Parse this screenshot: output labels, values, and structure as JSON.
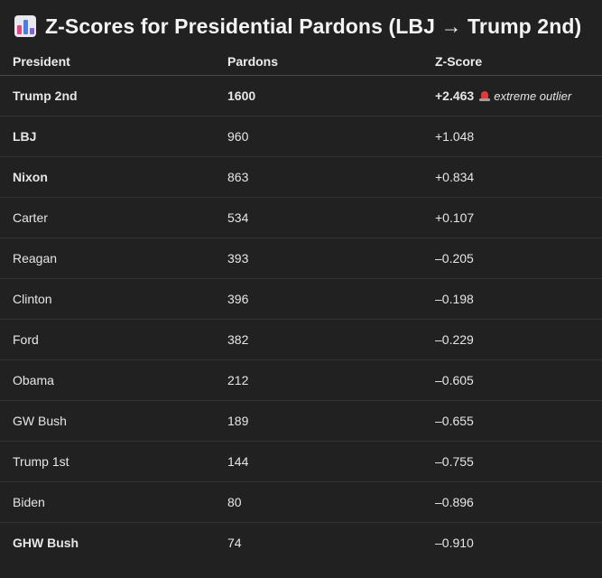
{
  "header": {
    "icon": "bar-chart-icon",
    "title": "Z-Scores for Presidential Pardons (LBJ → Trump 2nd)"
  },
  "table": {
    "columns": [
      "President",
      "Pardons",
      "Z-Score"
    ],
    "rows": [
      {
        "president": "Trump 2nd",
        "pardons": "1600",
        "z": "+2.463",
        "note": "extreme outlier",
        "note_icon": "siren-icon",
        "bold": true
      },
      {
        "president": "LBJ",
        "pardons": "960",
        "z": "+1.048",
        "bold": true
      },
      {
        "president": "Nixon",
        "pardons": "863",
        "z": "+0.834",
        "bold": true
      },
      {
        "president": "Carter",
        "pardons": "534",
        "z": "+0.107"
      },
      {
        "president": "Reagan",
        "pardons": "393",
        "z": "–0.205"
      },
      {
        "president": "Clinton",
        "pardons": "396",
        "z": "–0.198"
      },
      {
        "president": "Ford",
        "pardons": "382",
        "z": "–0.229"
      },
      {
        "president": "Obama",
        "pardons": "212",
        "z": "–0.605"
      },
      {
        "president": "GW Bush",
        "pardons": "189",
        "z": "–0.655"
      },
      {
        "president": "Trump 1st",
        "pardons": "144",
        "z": "–0.755"
      },
      {
        "president": "Biden",
        "pardons": "80",
        "z": "–0.896"
      },
      {
        "president": "GHW Bush",
        "pardons": "74",
        "z": "–0.910",
        "bold": true
      }
    ]
  }
}
